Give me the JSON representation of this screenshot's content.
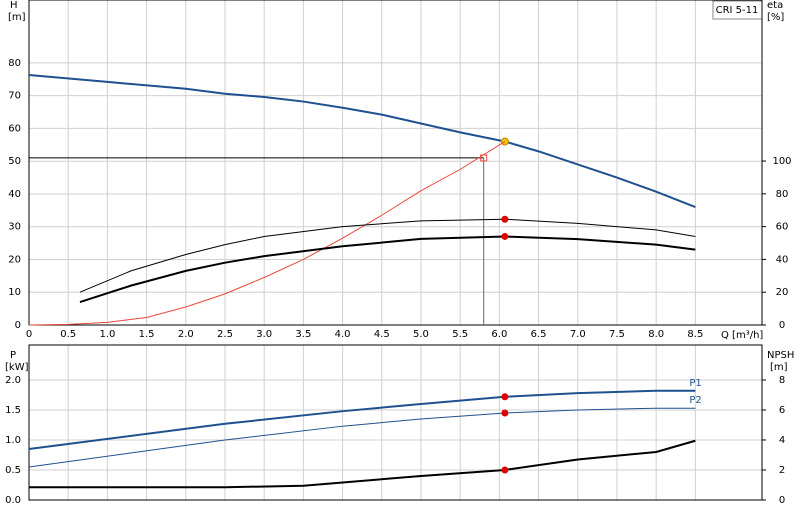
{
  "chart_data": [
    {
      "type": "line",
      "legend_box": "CRI 5-11",
      "y_label": "H",
      "y_unit": "[m]",
      "y2_label": "eta",
      "y2_unit": "[%]",
      "x_label": "Q [m³/h]",
      "xlim": [
        0,
        9.35
      ],
      "ylim": [
        0,
        99.2
      ],
      "y2lim": [
        0,
        198.2
      ],
      "xticks": [
        0,
        0.5,
        {
          "value": 1,
          "label": "1.0"
        },
        1.5,
        {
          "value": 2,
          "label": "2.0"
        },
        2.5,
        {
          "value": 3,
          "label": "3.0"
        },
        3.5,
        {
          "value": 4,
          "label": "4.0"
        },
        4.5,
        {
          "value": 5,
          "label": "5.0"
        },
        5.5,
        {
          "value": 6,
          "label": "6.0"
        },
        6.5,
        {
          "value": 7,
          "label": "7.0"
        },
        7.5,
        {
          "value": 8,
          "label": "8.0"
        },
        8.5
      ],
      "yticks": [
        0,
        10,
        20,
        30,
        40,
        50,
        60,
        70,
        80
      ],
      "y2ticks": [
        0,
        20,
        40,
        60,
        80,
        100
      ],
      "grid": true,
      "operating_point_q": 6.07,
      "duty_point": {
        "q": 5.8,
        "h": 51
      },
      "series": [
        {
          "color": "#1f5190",
          "width": 2,
          "x": [
            0,
            1,
            2,
            2.5,
            3,
            3.5,
            4,
            4.5,
            5,
            5.5,
            6.07,
            6.5,
            7,
            7.5,
            8,
            8.5
          ],
          "values": [
            76.3,
            74.2,
            72.1,
            70.6,
            69.6,
            68.2,
            66.3,
            64.2,
            61.5,
            58.8,
            56,
            53,
            49,
            45,
            40.7,
            36
          ],
          "marker": "#f5c400"
        },
        {
          "color": "#e84a3a",
          "width": 1,
          "x": [
            0,
            0.5,
            1,
            1.5,
            2,
            2.5,
            3,
            3.5,
            4,
            4.5,
            5,
            5.5,
            6.07
          ],
          "values": [
            0,
            0.2,
            0.8,
            2.3,
            5.5,
            9.5,
            14.5,
            20,
            26.5,
            33.5,
            41,
            47.5,
            56
          ]
        },
        {
          "color": "#000000",
          "width": 1,
          "axis": "y2",
          "x": [
            0.65,
            1.3,
            2,
            2.5,
            3,
            4,
            5,
            6.07,
            7,
            8,
            8.5
          ],
          "values": [
            20,
            33,
            43,
            49,
            54,
            60,
            63.5,
            64.5,
            62,
            58,
            54
          ],
          "marker": "#e00000"
        },
        {
          "color": "#000000",
          "width": 2,
          "axis": "y2",
          "x": [
            0.65,
            1.3,
            2,
            2.5,
            3,
            4,
            5,
            6.07,
            7,
            8,
            8.5
          ],
          "values": [
            14,
            24,
            33,
            38,
            42,
            48,
            52.5,
            54,
            52.4,
            49,
            46
          ],
          "marker": "#e00000"
        }
      ]
    },
    {
      "type": "line",
      "y_label": "P",
      "y_unit": "[kW]",
      "y2_label": "NPSH",
      "y2_unit": "[m]",
      "xlim": [
        0,
        9.35
      ],
      "ylim": [
        0,
        2.583
      ],
      "y2lim": [
        0,
        10.33
      ],
      "xticks": [
        0,
        0.5,
        1,
        1.5,
        2,
        2.5,
        3,
        3.5,
        4,
        4.5,
        5,
        5.5,
        6,
        6.5,
        7,
        7.5,
        8,
        8.5
      ],
      "yticks": [
        {
          "value": 0,
          "label": "0.0"
        },
        0.5,
        {
          "value": 1,
          "label": "1.0"
        },
        1.5,
        {
          "value": 2,
          "label": "2.0"
        }
      ],
      "y2ticks": [
        0,
        2,
        4,
        6,
        8
      ],
      "grid": true,
      "operating_point_q": 6.07,
      "series": [
        {
          "name": "P1",
          "color": "#1f5190",
          "width": 2,
          "x": [
            0,
            2.5,
            4,
            5,
            6.07,
            7,
            8,
            8.5
          ],
          "values": [
            0.85,
            1.27,
            1.48,
            1.6,
            1.72,
            1.78,
            1.82,
            1.82
          ],
          "marker": "#e00000"
        },
        {
          "name": "P2",
          "color": "#1f5190",
          "width": 1,
          "x": [
            0,
            2.5,
            4,
            5,
            6.07,
            7,
            8,
            8.5
          ],
          "values": [
            0.55,
            1.0,
            1.23,
            1.35,
            1.45,
            1.5,
            1.53,
            1.53
          ],
          "marker": "#e00000"
        },
        {
          "color": "#000000",
          "width": 2,
          "axis": "y2",
          "x": [
            0,
            2.5,
            3.5,
            5,
            6.07,
            7,
            8,
            8.5
          ],
          "values": [
            0.85,
            0.85,
            0.95,
            1.6,
            2.0,
            2.7,
            3.2,
            3.95
          ],
          "marker": "#e00000"
        }
      ]
    }
  ]
}
